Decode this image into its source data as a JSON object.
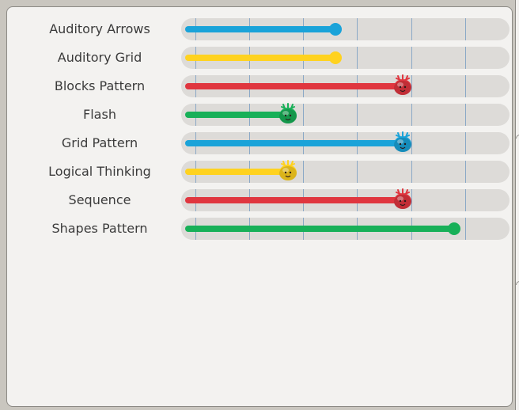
{
  "colors": {
    "blue": "#1aa3d9",
    "yellow": "#ffd21f",
    "red": "#e0363f",
    "green": "#18b058"
  },
  "rows": [
    {
      "label": "Auditory Arrows",
      "level": 0.47,
      "color": "blue",
      "marker": "dot"
    },
    {
      "label": "Auditory Grid",
      "level": 0.47,
      "color": "yellow",
      "marker": "dot"
    },
    {
      "label": "Blocks Pattern",
      "level": 0.68,
      "color": "red",
      "marker": "creature"
    },
    {
      "label": "Flash",
      "level": 0.32,
      "color": "green",
      "marker": "creature"
    },
    {
      "label": "Grid Pattern",
      "level": 0.68,
      "color": "blue",
      "marker": "creature"
    },
    {
      "label": "Logical Thinking",
      "level": 0.32,
      "color": "yellow",
      "marker": "creature"
    },
    {
      "label": "Sequence",
      "level": 0.68,
      "color": "red",
      "marker": "creature"
    },
    {
      "label": "Shapes Pattern",
      "level": 0.84,
      "color": "green",
      "marker": "dot"
    }
  ],
  "icons": {
    "creature": "monster-face-icon",
    "dot": "slider-knob"
  }
}
